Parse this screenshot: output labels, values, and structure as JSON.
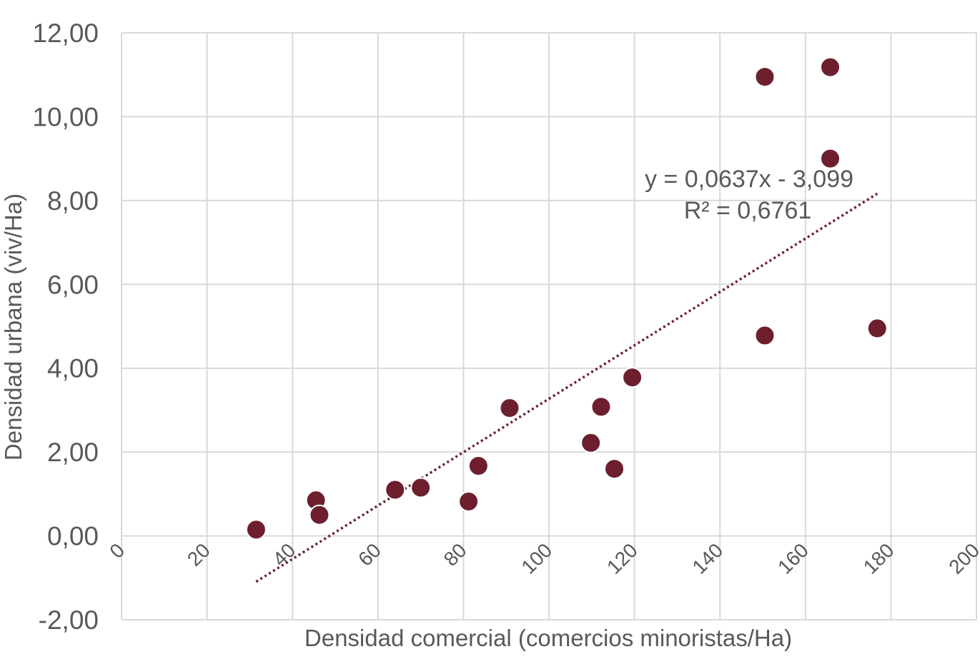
{
  "chart_data": {
    "type": "scatter",
    "title": "",
    "xlabel": "Densidad comercial (comercios minoristas/Ha)",
    "ylabel": "Densidad urbana (viv/Ha)",
    "xlim": [
      0,
      200
    ],
    "ylim": [
      -2,
      12
    ],
    "x_ticks": [
      0,
      20,
      40,
      60,
      80,
      100,
      120,
      140,
      160,
      180,
      200
    ],
    "x_tick_labels": [
      "0",
      "20",
      "40",
      "60",
      "80",
      "100",
      "120",
      "140",
      "160",
      "180",
      "200"
    ],
    "y_ticks": [
      -2,
      0,
      2,
      4,
      6,
      8,
      10,
      12
    ],
    "y_tick_labels": [
      "-2,00",
      "0,00",
      "2,00",
      "4,00",
      "6,00",
      "8,00",
      "10,00",
      "12,00"
    ],
    "grid": true,
    "point_color": "#6d1f2e",
    "series": [
      {
        "points": [
          {
            "x": 31.5,
            "y": 0.15
          },
          {
            "x": 45.5,
            "y": 0.85
          },
          {
            "x": 46.3,
            "y": 0.5
          },
          {
            "x": 64.0,
            "y": 1.1
          },
          {
            "x": 70.0,
            "y": 1.15
          },
          {
            "x": 81.2,
            "y": 0.82
          },
          {
            "x": 83.5,
            "y": 1.67
          },
          {
            "x": 90.8,
            "y": 3.05
          },
          {
            "x": 109.8,
            "y": 2.22
          },
          {
            "x": 112.2,
            "y": 3.08
          },
          {
            "x": 115.3,
            "y": 1.6
          },
          {
            "x": 119.5,
            "y": 3.78
          },
          {
            "x": 150.5,
            "y": 10.95
          },
          {
            "x": 150.5,
            "y": 4.78
          },
          {
            "x": 165.8,
            "y": 11.18
          },
          {
            "x": 165.8,
            "y": 9.0
          },
          {
            "x": 176.8,
            "y": 4.95
          }
        ]
      }
    ],
    "trendline": {
      "type": "linear",
      "slope": 0.0637,
      "intercept": -3.099,
      "x_range": [
        31.5,
        176.8
      ],
      "color": "#6d1f2e",
      "equation_label": "y = 0,0637x - 3,099",
      "r2_label": "R² = 0,6761"
    }
  }
}
